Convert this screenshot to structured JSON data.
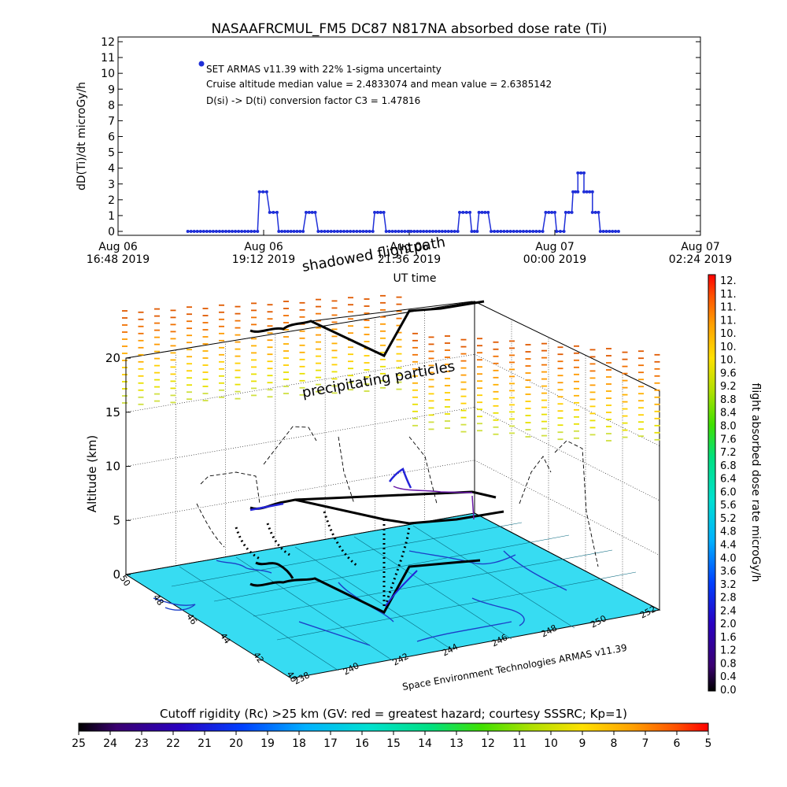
{
  "chart_data": [
    {
      "type": "line",
      "title": "NASAAFRCMUL_FM5 DC87 N817NA absorbed dose rate (Ti)",
      "ylabel": "dD(Ti)/dt microGy/h",
      "xlabel": "UT time",
      "ylim": [
        0,
        12
      ],
      "yticks": [
        "0",
        "1",
        "2",
        "3",
        "4",
        "5",
        "6",
        "7",
        "8",
        "9",
        "10",
        "11",
        "12"
      ],
      "xticks": [
        {
          "line1": "Aug 06",
          "line2": "16:48 2019",
          "hours": 0
        },
        {
          "line1": "Aug 06",
          "line2": "19:12 2019",
          "hours": 2.4
        },
        {
          "line1": "Aug 06",
          "line2": "21:36 2019",
          "hours": 4.8
        },
        {
          "line1": "Aug 07",
          "line2": "00:00 2019",
          "hours": 7.2
        },
        {
          "line1": "Aug 07",
          "line2": "02:24 2019",
          "hours": 9.6
        }
      ],
      "xlim_hours": [
        0,
        9.6
      ],
      "series_color": "#1f2fd8",
      "segments": [
        {
          "x": [
            1.15,
            2.3
          ],
          "y": [
            0,
            0
          ]
        },
        {
          "x": [
            2.33,
            2.45
          ],
          "y": [
            2.5,
            2.5
          ]
        },
        {
          "x": [
            2.5,
            2.62
          ],
          "y": [
            1.2,
            1.2
          ]
        },
        {
          "x": [
            2.65,
            3.05
          ],
          "y": [
            0,
            0
          ]
        },
        {
          "x": [
            3.1,
            3.25
          ],
          "y": [
            1.2,
            1.2
          ]
        },
        {
          "x": [
            3.3,
            4.2
          ],
          "y": [
            0,
            0
          ]
        },
        {
          "x": [
            4.23,
            4.38
          ],
          "y": [
            1.2,
            1.2
          ]
        },
        {
          "x": [
            4.42,
            5.6
          ],
          "y": [
            0,
            0
          ]
        },
        {
          "x": [
            5.63,
            5.8
          ],
          "y": [
            1.2,
            1.2
          ]
        },
        {
          "x": [
            5.83,
            5.92
          ],
          "y": [
            0,
            0
          ]
        },
        {
          "x": [
            5.95,
            6.1
          ],
          "y": [
            1.2,
            1.2
          ]
        },
        {
          "x": [
            6.15,
            7.0
          ],
          "y": [
            0,
            0
          ]
        },
        {
          "x": [
            7.05,
            7.2
          ],
          "y": [
            1.2,
            1.2
          ]
        },
        {
          "x": [
            7.23,
            7.35
          ],
          "y": [
            0,
            0
          ]
        },
        {
          "x": [
            7.38,
            7.48
          ],
          "y": [
            1.2,
            1.2
          ]
        },
        {
          "x": [
            7.5,
            7.58
          ],
          "y": [
            2.5,
            2.5
          ]
        },
        {
          "x": [
            7.58,
            7.68
          ],
          "y": [
            3.7,
            3.7
          ]
        },
        {
          "x": [
            7.68,
            7.82
          ],
          "y": [
            2.5,
            2.5
          ]
        },
        {
          "x": [
            7.82,
            7.92
          ],
          "y": [
            1.2,
            1.2
          ]
        },
        {
          "x": [
            7.95,
            8.25
          ],
          "y": [
            0,
            0
          ]
        }
      ],
      "legend": {
        "entry": "SET ARMAS v11.39 with 22% 1-sigma uncertainty",
        "note1": "Cruise altitude median value = 2.4833074 and mean value = 2.6385142",
        "note2": "D(si) -> D(ti) conversion factor C3 = 1.47816"
      }
    },
    {
      "type": "scatter",
      "zlabel": "Altitude (km)",
      "zticks": [
        "0",
        "5",
        "10",
        "15",
        "20"
      ],
      "x_ticks": [
        "238",
        "240",
        "242",
        "244",
        "246",
        "248",
        "250",
        "252"
      ],
      "y_ticks": [
        "40",
        "42",
        "44",
        "46",
        "48",
        "50"
      ],
      "floor_color": "#37dcf2",
      "annotations": {
        "shadowed": "shadowed flightpath",
        "precip": "precipitating particles",
        "credit": "Space Environment Technologies ARMAS v11.39"
      }
    }
  ],
  "colorbar_right": {
    "label": "flight absorbed dose rate microGy/h",
    "ticks": [
      "12.",
      "11.",
      "11.",
      "11.",
      "10.",
      "10.",
      "10.",
      "9.6",
      "9.2",
      "8.8",
      "8.4",
      "8.0",
      "7.6",
      "7.2",
      "6.8",
      "6.4",
      "6.0",
      "5.6",
      "5.2",
      "4.8",
      "4.4",
      "4.0",
      "3.6",
      "3.2",
      "2.8",
      "2.4",
      "2.0",
      "1.6",
      "1.2",
      "0.8",
      "0.4",
      "0.0"
    ]
  },
  "colorbar_bottom": {
    "title": "Cutoff rigidity (Rc) >25 km (GV: red = greatest hazard; courtesy SSSRC; Kp=1)",
    "ticks": [
      "25",
      "24",
      "23",
      "22",
      "21",
      "20",
      "19",
      "18",
      "17",
      "16",
      "15",
      "14",
      "13",
      "12",
      "11",
      "10",
      "9",
      "8",
      "7",
      "6",
      "5"
    ]
  }
}
